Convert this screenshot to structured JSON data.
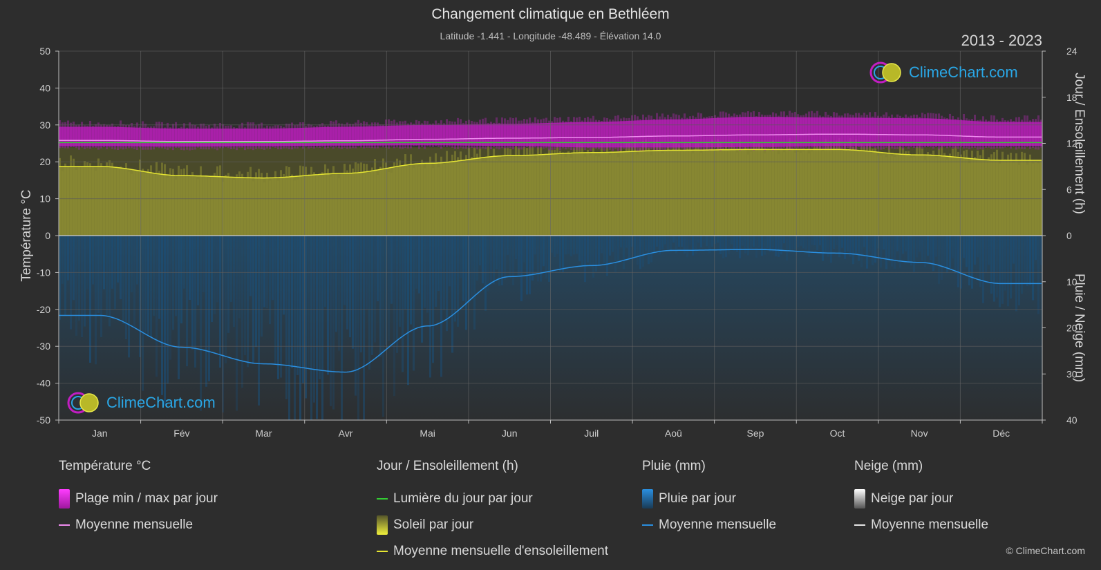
{
  "header": {
    "title": "Changement climatique en Bethléem",
    "subtitle": "Latitude -1.441 - Longitude -48.489 - Élévation 14.0",
    "years": "2013 - 2023"
  },
  "brand": {
    "name": "ClimeChart.com",
    "copyright": "© ClimeChart.com"
  },
  "colors": {
    "background": "#2d2d2d",
    "temp_band": "#c21ec2",
    "temp_mean": "#f08cf0",
    "daylight": "#33cc33",
    "sun_area": "#8c8c32",
    "sun_mean": "#e6e632",
    "rain_mean": "#2a8fe0",
    "rain_bar": "#1e5f8f",
    "brand": "#2aa7e6"
  },
  "legend": {
    "temperature": {
      "title": "Température °C",
      "items": [
        {
          "label": "Plage min / max par jour",
          "icon": "magenta-range-swatch"
        },
        {
          "label": "Moyenne mensuelle",
          "icon": "pink-line"
        }
      ]
    },
    "sun": {
      "title": "Jour / Ensoleillement (h)",
      "items": [
        {
          "label": "Lumière du jour par jour",
          "icon": "green-line"
        },
        {
          "label": "Soleil par jour",
          "icon": "yellow-gradient-swatch"
        },
        {
          "label": "Moyenne mensuelle d'ensoleillement",
          "icon": "yellow-line"
        }
      ]
    },
    "rain": {
      "title": "Pluie (mm)",
      "items": [
        {
          "label": "Pluie par jour",
          "icon": "blue-gradient-swatch"
        },
        {
          "label": "Moyenne mensuelle",
          "icon": "blue-line"
        }
      ]
    },
    "snow": {
      "title": "Neige (mm)",
      "items": [
        {
          "label": "Neige par jour",
          "icon": "white-gradient-swatch"
        },
        {
          "label": "Moyenne mensuelle",
          "icon": "white-line"
        }
      ]
    }
  },
  "chart_data": {
    "type": "area",
    "categories": [
      "Jan",
      "Fév",
      "Mar",
      "Avr",
      "Mai",
      "Jun",
      "Juil",
      "Aoû",
      "Sep",
      "Oct",
      "Nov",
      "Déc"
    ],
    "left_axis": {
      "label": "Température °C",
      "ylim": [
        -50,
        50
      ],
      "ticks": [
        50,
        40,
        30,
        20,
        10,
        0,
        -10,
        -20,
        -30,
        -40,
        -50
      ]
    },
    "right_axis_top": {
      "label": "Jour / Ensoleillement (h)",
      "ylim": [
        0,
        24
      ],
      "ticks": [
        24,
        18,
        12,
        6,
        0
      ]
    },
    "right_axis_bottom": {
      "label": "Pluie / Neige (mm)",
      "ylim": [
        0,
        40
      ],
      "ticks": [
        0,
        10,
        20,
        30,
        40
      ]
    },
    "grid": true,
    "series": [
      {
        "name": "Moyenne mensuelle",
        "kind": "temperature_mean",
        "values": [
          25.8,
          25.5,
          25.5,
          25.7,
          26.1,
          26.4,
          26.6,
          27.0,
          27.3,
          27.5,
          27.3,
          26.7
        ]
      },
      {
        "name": "Plage min / max par jour",
        "kind": "temperature_max",
        "values": [
          30.5,
          30.0,
          30.0,
          30.5,
          31.0,
          31.3,
          31.8,
          32.5,
          33.2,
          33.0,
          32.8,
          31.8
        ]
      },
      {
        "name": "Plage min / max par jour",
        "kind": "temperature_min",
        "values": [
          23.6,
          23.5,
          23.6,
          23.8,
          23.9,
          23.7,
          23.3,
          23.3,
          23.4,
          23.6,
          23.7,
          23.7
        ]
      },
      {
        "name": "Lumière du jour par jour",
        "kind": "daylight_hours",
        "values": [
          12.1,
          12.1,
          12.1,
          12.1,
          12.1,
          12.1,
          12.1,
          12.1,
          12.1,
          12.1,
          12.1,
          12.1
        ]
      },
      {
        "name": "Moyenne mensuelle d'ensoleillement",
        "kind": "sunshine_mean_hours",
        "values": [
          9.0,
          7.8,
          7.5,
          8.1,
          9.4,
          10.4,
          10.8,
          11.1,
          11.2,
          11.2,
          10.5,
          9.8
        ]
      },
      {
        "name": "Moyenne mensuelle",
        "kind": "rain_mean_mm",
        "values": [
          17.3,
          24.2,
          27.8,
          29.6,
          19.6,
          8.9,
          6.5,
          3.2,
          3.0,
          3.8,
          5.8,
          10.4
        ]
      },
      {
        "name": "Moyenne mensuelle",
        "kind": "snow_mean_mm",
        "values": [
          0,
          0,
          0,
          0,
          0,
          0,
          0,
          0,
          0,
          0,
          0,
          0
        ]
      }
    ]
  }
}
